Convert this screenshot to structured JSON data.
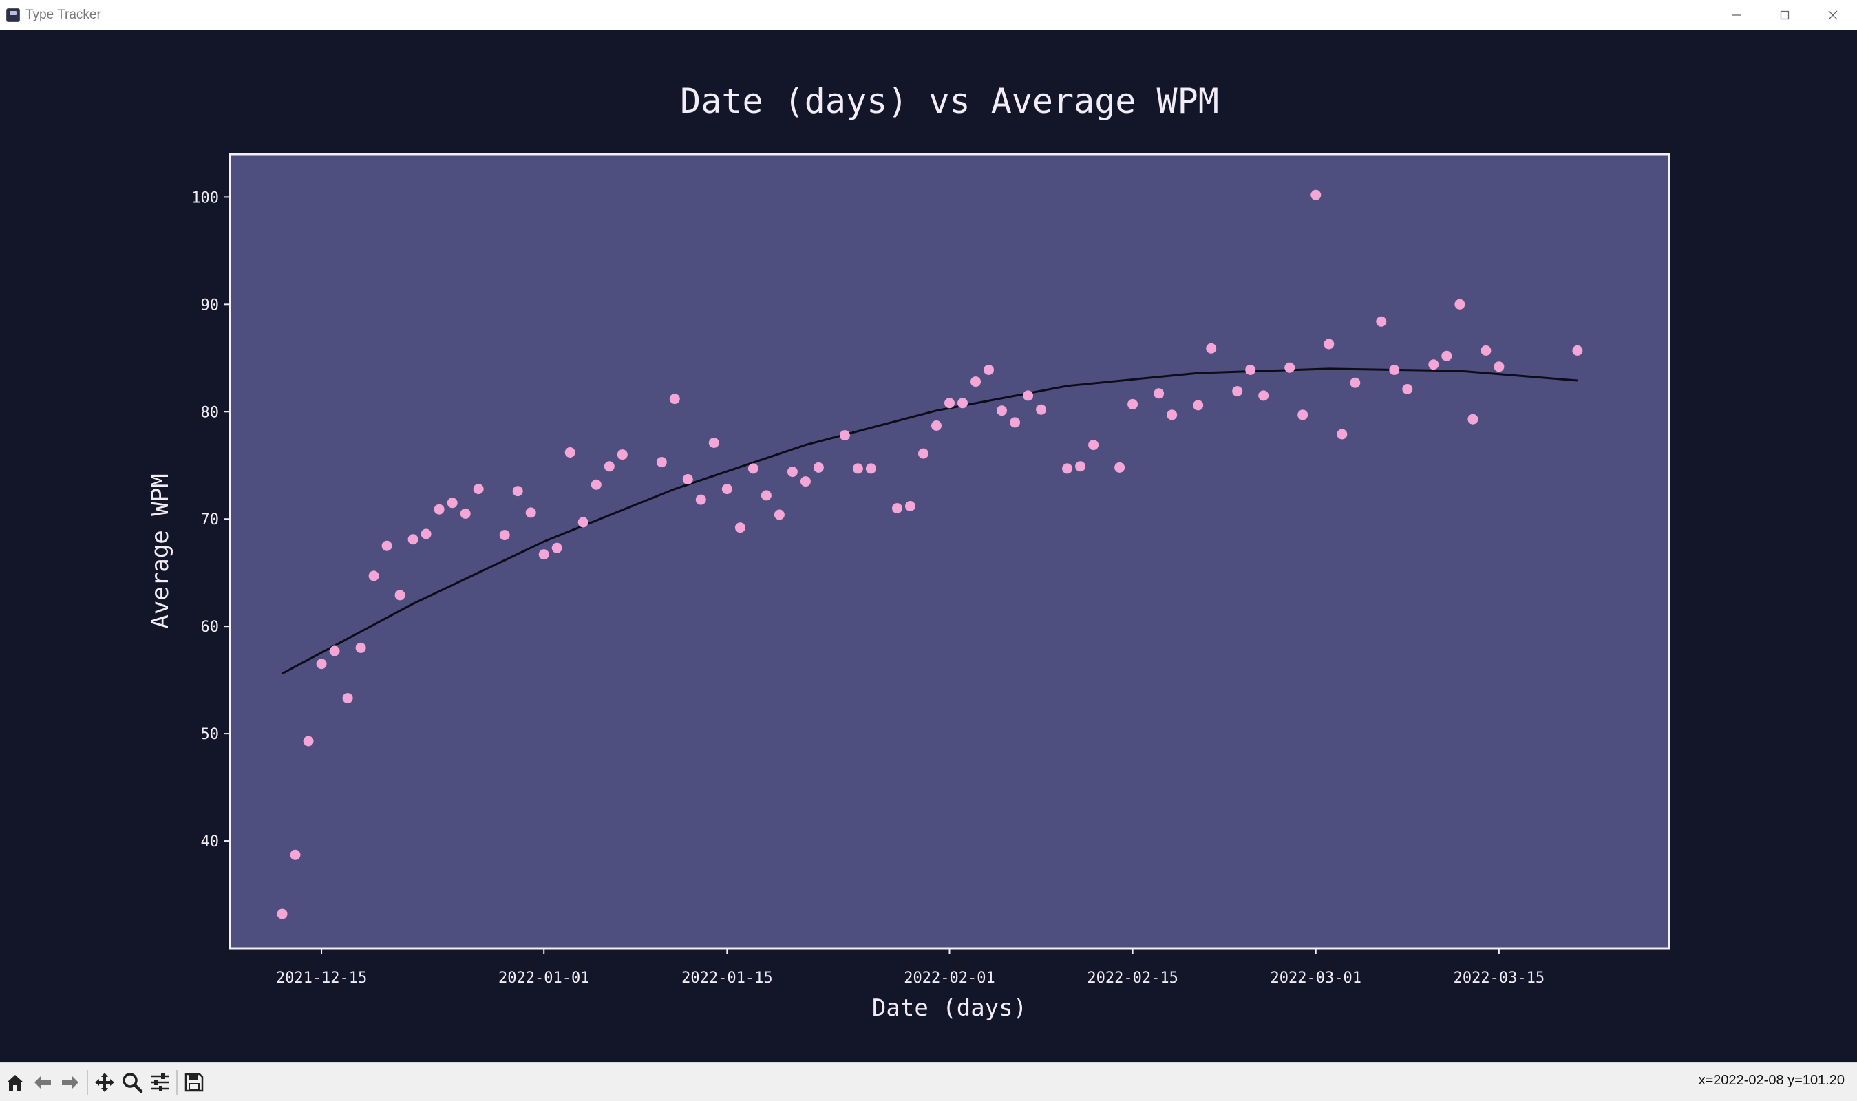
{
  "window": {
    "title": "Type Tracker",
    "minimize_icon": "minimize-icon",
    "maximize_icon": "maximize-icon",
    "close_icon": "close-icon"
  },
  "toolbar": {
    "tools": [
      "home-icon",
      "back-arrow-icon",
      "forward-arrow-icon",
      "pan-icon",
      "zoom-icon",
      "configure-subplots-icon",
      "save-icon"
    ],
    "coordinates": "x=2022-02-08 y=101.20"
  },
  "colors": {
    "figure_background": "#131629",
    "plot_background": "#4e4e7f",
    "points": "#f4a7d6",
    "trend_line": "#0b0d18",
    "text": "#f1ecf5"
  },
  "chart_data": {
    "type": "scatter",
    "title": "Date (days) vs Average WPM",
    "xlabel": "Date (days)",
    "ylabel": "Average WPM",
    "x_type": "date",
    "xlim": [
      "2021-12-08",
      "2022-03-28"
    ],
    "ylim": [
      30,
      104
    ],
    "x_ticks": [
      "2021-12-15",
      "2022-01-01",
      "2022-01-15",
      "2022-02-01",
      "2022-02-15",
      "2022-03-01",
      "2022-03-15"
    ],
    "y_ticks": [
      40,
      50,
      60,
      70,
      80,
      90,
      100
    ],
    "grid": false,
    "legend": "none",
    "series": [
      {
        "type": "scatter",
        "x": [
          "2021-12-12",
          "2021-12-13",
          "2021-12-14",
          "2021-12-15",
          "2021-12-16",
          "2021-12-17",
          "2021-12-18",
          "2021-12-19",
          "2021-12-20",
          "2021-12-21",
          "2021-12-22",
          "2021-12-23",
          "2021-12-24",
          "2021-12-25",
          "2021-12-26",
          "2021-12-27",
          "2021-12-29",
          "2021-12-30",
          "2021-12-31",
          "2022-01-01",
          "2022-01-02",
          "2022-01-03",
          "2022-01-04",
          "2022-01-05",
          "2022-01-06",
          "2022-01-07",
          "2022-01-10",
          "2022-01-11",
          "2022-01-12",
          "2022-01-13",
          "2022-01-14",
          "2022-01-15",
          "2022-01-16",
          "2022-01-17",
          "2022-01-18",
          "2022-01-19",
          "2022-01-20",
          "2022-01-21",
          "2022-01-22",
          "2022-01-24",
          "2022-01-25",
          "2022-01-26",
          "2022-01-28",
          "2022-01-29",
          "2022-01-30",
          "2022-01-31",
          "2022-02-01",
          "2022-02-02",
          "2022-02-03",
          "2022-02-04",
          "2022-02-05",
          "2022-02-06",
          "2022-02-07",
          "2022-02-08",
          "2022-02-10",
          "2022-02-11",
          "2022-02-12",
          "2022-02-14",
          "2022-02-15",
          "2022-02-17",
          "2022-02-18",
          "2022-02-20",
          "2022-02-21",
          "2022-02-23",
          "2022-02-24",
          "2022-02-25",
          "2022-02-27",
          "2022-02-28",
          "2022-03-01",
          "2022-03-02",
          "2022-03-03",
          "2022-03-04",
          "2022-03-06",
          "2022-03-07",
          "2022-03-08",
          "2022-03-10",
          "2022-03-11",
          "2022-03-12",
          "2022-03-13",
          "2022-03-14",
          "2022-03-15",
          "2022-03-21"
        ],
        "y": [
          33.2,
          38.7,
          49.3,
          56.5,
          57.7,
          53.3,
          58.0,
          64.7,
          67.5,
          62.9,
          68.1,
          68.6,
          70.9,
          71.5,
          70.5,
          72.8,
          68.5,
          72.6,
          70.6,
          66.7,
          67.3,
          76.2,
          69.7,
          73.2,
          74.9,
          76.0,
          75.3,
          81.2,
          73.7,
          71.8,
          77.1,
          72.8,
          69.2,
          74.7,
          72.2,
          70.4,
          74.4,
          73.5,
          74.8,
          77.8,
          74.7,
          74.7,
          71.0,
          71.2,
          76.1,
          78.7,
          80.8,
          80.8,
          82.8,
          83.9,
          80.1,
          79.0,
          81.5,
          80.2,
          74.7,
          74.9,
          76.9,
          74.8,
          80.7,
          81.7,
          79.7,
          80.6,
          85.9,
          81.9,
          83.9,
          81.5,
          84.1,
          79.7,
          100.2,
          86.3,
          77.9,
          82.7,
          88.4,
          83.9,
          82.1,
          84.4,
          85.2,
          90.0,
          79.3,
          85.7,
          84.2,
          85.7
        ]
      },
      {
        "type": "line",
        "fit": "quadratic",
        "x": [
          "2021-12-12",
          "2021-12-22",
          "2022-01-01",
          "2022-01-11",
          "2022-01-21",
          "2022-01-31",
          "2022-02-10",
          "2022-02-20",
          "2022-03-02",
          "2022-03-12",
          "2022-03-21"
        ],
        "y": [
          55.6,
          62.1,
          67.9,
          72.8,
          76.9,
          80.1,
          82.4,
          83.6,
          84.0,
          83.8,
          82.9
        ]
      }
    ]
  }
}
